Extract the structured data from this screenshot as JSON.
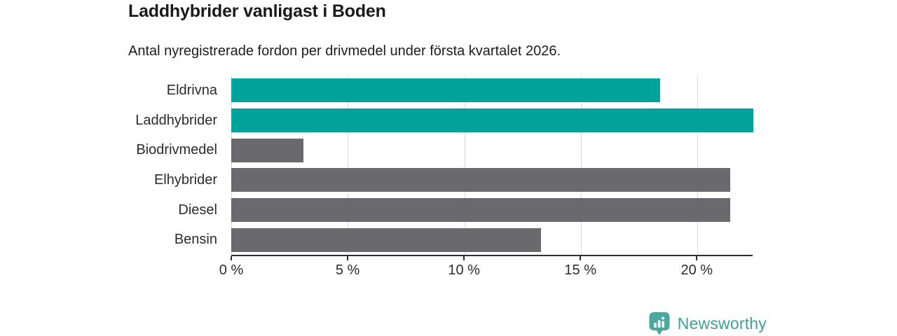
{
  "chart": {
    "title": "Laddhybrider vanligast i Boden",
    "subtitle": "Antal nyregistrerade fordon per drivmedel under första kvartalet 2026."
  },
  "chart_data": {
    "type": "bar",
    "orientation": "horizontal",
    "title": "Laddhybrider vanligast i Boden",
    "subtitle": "Antal nyregistrerade fordon per drivmedel under första kvartalet 2026.",
    "categories": [
      "Eldrivna",
      "Laddhybrider",
      "Biodrivmedel",
      "Elhybrider",
      "Diesel",
      "Bensin"
    ],
    "values": [
      18.4,
      22.4,
      3.1,
      21.4,
      21.4,
      13.3
    ],
    "unit": "%",
    "bar_colors": [
      "#00a29a",
      "#00a29a",
      "#6a6a6e",
      "#6a6a6e",
      "#6a6a6e",
      "#6a6a6e"
    ],
    "highlight_color": "#00a29a",
    "default_color": "#6a6a6e",
    "xlabel": "",
    "ylabel": "",
    "xlim": [
      0,
      22.4
    ],
    "x_ticks": [
      0,
      5,
      10,
      15,
      20
    ],
    "x_tick_labels": [
      "0 %",
      "5 %",
      "10 %",
      "15 %",
      "20 %"
    ],
    "grid": true,
    "gridline_color": "#d9d9d9",
    "legend": "none"
  },
  "branding": {
    "logo_text": "Newsworthy",
    "logo_icon": "newsworthy-barchart-pin-icon",
    "icon_color": "#4da7a1",
    "text_color": "#3f9f9a"
  }
}
